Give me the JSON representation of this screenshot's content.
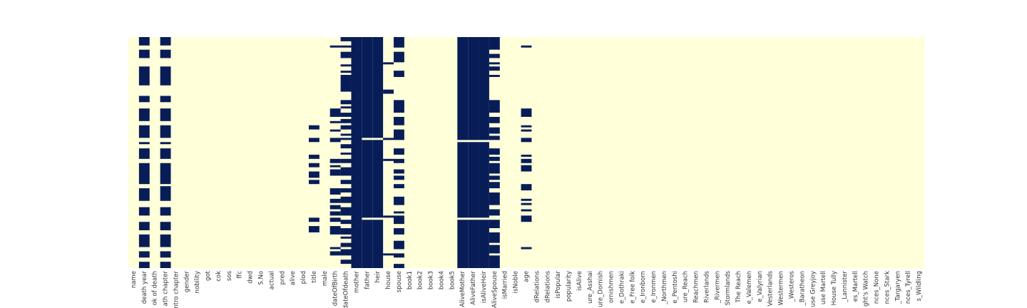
{
  "chart_data": {
    "type": "heatmap",
    "title": "",
    "xlabel": "",
    "ylabel": "",
    "grid": false,
    "colorbar": false,
    "colors": {
      "present": "#ffffd9",
      "missing": "#081d58"
    },
    "value_meaning": "1 = missing value, 0 = present",
    "x_tick_labels": [
      "name",
      "death year",
      "ok of death",
      "ath chapter",
      "ntro chapter",
      "gender",
      "nobility",
      "got",
      "cok",
      "sos",
      "ffc",
      "dwd",
      "S.No",
      "actual",
      "pred",
      "alive",
      "plod",
      "title",
      "male",
      "dateOfBirth",
      "dateOfdeath",
      "mother",
      "father",
      "heir",
      "house",
      "spouse",
      "book1",
      "book2",
      "book3",
      "book4",
      "book5",
      "AliveMother",
      "AliveFather",
      "isAliveHeir",
      "AliveSpouse",
      "isMarried",
      "isNoble",
      "age",
      "dRelations",
      "dRelations",
      "isPopular",
      "popularity",
      "isAlive",
      "ure_Asshai",
      "ure_Dornish",
      "ornishmen",
      "e_Dothraki",
      "e_Free folk",
      "e_Ironborn",
      "e_Ironmen",
      "_Northmen",
      "e_Pentoshi",
      "ure_Reach",
      "Reachmen",
      "Riverlands",
      "_Rivermen",
      "Stormlands",
      "The Reach",
      "e_Valemen",
      "e_Valyrian",
      "Vesterlands",
      "Westermen",
      "_Westeros",
      "_Baratheon",
      "use Greyjoy",
      "use Martell",
      "House Tully",
      "_Lannister",
      "es_Martell",
      "ght's Watch",
      "nces_None",
      "nces_Stark",
      "_Targaryen",
      "nces_Tyrell",
      "s_Wildling"
    ],
    "n_rows": 110,
    "missing_segments": {
      "1": [
        [
          0,
          4
        ],
        [
          6,
          10
        ],
        [
          14,
          23
        ],
        [
          28,
          31
        ],
        [
          34,
          40
        ],
        [
          42,
          48
        ],
        [
          50,
          51
        ],
        [
          53,
          58
        ],
        [
          60,
          70
        ],
        [
          72,
          78
        ],
        [
          81,
          85
        ],
        [
          88,
          92
        ],
        [
          94,
          100
        ],
        [
          102,
          105
        ],
        [
          107,
          110
        ]
      ],
      "3": [
        [
          0,
          4
        ],
        [
          6,
          10
        ],
        [
          14,
          23
        ],
        [
          28,
          31
        ],
        [
          34,
          40
        ],
        [
          42,
          48
        ],
        [
          50,
          51
        ],
        [
          53,
          58
        ],
        [
          60,
          70
        ],
        [
          71,
          78
        ],
        [
          81,
          85
        ],
        [
          88,
          92
        ],
        [
          94,
          100
        ],
        [
          102,
          105
        ],
        [
          107,
          110
        ]
      ],
      "17": [
        [
          42,
          44
        ],
        [
          48,
          50
        ],
        [
          56,
          58
        ],
        [
          60,
          62
        ],
        [
          64,
          67
        ],
        [
          68,
          70
        ],
        [
          86,
          88
        ],
        [
          90,
          93
        ]
      ],
      "19": [
        [
          4,
          5
        ],
        [
          34,
          38
        ],
        [
          40,
          41
        ],
        [
          44,
          45
        ],
        [
          48,
          50
        ],
        [
          58,
          60
        ],
        [
          61,
          62
        ],
        [
          63,
          66
        ],
        [
          72,
          75
        ],
        [
          77,
          79
        ],
        [
          80,
          82
        ],
        [
          83,
          85
        ],
        [
          86,
          88
        ],
        [
          90,
          94
        ],
        [
          100,
          101
        ],
        [
          102,
          104
        ]
      ],
      "20": [
        [
          0,
          2
        ],
        [
          4,
          5
        ],
        [
          7,
          10
        ],
        [
          13,
          14
        ],
        [
          16,
          17
        ],
        [
          18,
          26
        ],
        [
          30,
          32
        ],
        [
          33,
          34
        ],
        [
          36,
          38
        ],
        [
          39,
          41
        ],
        [
          42,
          44
        ],
        [
          46,
          47
        ],
        [
          48,
          49
        ],
        [
          51,
          53
        ],
        [
          55,
          56
        ],
        [
          58,
          60
        ],
        [
          62,
          66
        ],
        [
          68,
          70
        ],
        [
          72,
          74
        ],
        [
          76,
          79
        ],
        [
          81,
          85
        ],
        [
          87,
          89
        ],
        [
          91,
          94
        ],
        [
          95,
          96
        ],
        [
          98,
          100
        ],
        [
          101,
          104
        ],
        [
          106,
          108
        ]
      ],
      "21": [
        [
          0,
          110
        ]
      ],
      "22": [
        [
          0,
          48
        ],
        [
          49,
          86
        ],
        [
          87,
          110
        ]
      ],
      "23": [
        [
          0,
          48
        ],
        [
          49,
          86
        ],
        [
          87,
          110
        ]
      ],
      "24": [
        [
          12,
          13
        ],
        [
          25,
          27
        ],
        [
          48,
          49
        ],
        [
          58,
          59
        ],
        [
          85,
          86
        ],
        [
          103,
          104
        ]
      ],
      "25": [
        [
          0,
          5
        ],
        [
          7,
          12
        ],
        [
          16,
          19
        ],
        [
          30,
          36
        ],
        [
          38,
          42
        ],
        [
          44,
          49
        ],
        [
          53,
          56
        ],
        [
          58,
          60
        ],
        [
          63,
          65
        ],
        [
          66,
          68
        ],
        [
          70,
          72
        ],
        [
          76,
          80
        ],
        [
          83,
          84
        ],
        [
          85,
          89
        ],
        [
          91,
          94
        ],
        [
          97,
          101
        ],
        [
          103,
          105
        ],
        [
          108,
          110
        ]
      ],
      "31": [
        [
          0,
          49
        ],
        [
          50,
          86
        ],
        [
          87,
          110
        ]
      ],
      "32": [
        [
          0,
          49
        ],
        [
          50,
          86
        ],
        [
          87,
          110
        ]
      ],
      "33": [
        [
          0,
          49
        ],
        [
          50,
          86
        ],
        [
          87,
          110
        ]
      ],
      "34": [
        [
          0,
          6
        ],
        [
          8,
          10
        ],
        [
          12,
          13
        ],
        [
          14,
          16
        ],
        [
          18,
          19
        ],
        [
          30,
          36
        ],
        [
          38,
          41
        ],
        [
          43,
          46
        ],
        [
          47,
          49
        ],
        [
          53,
          56
        ],
        [
          57,
          59
        ],
        [
          60,
          65
        ],
        [
          66,
          68
        ],
        [
          69,
          72
        ],
        [
          74,
          80
        ],
        [
          82,
          85
        ],
        [
          87,
          91
        ],
        [
          93,
          98
        ],
        [
          99,
          103
        ],
        [
          104,
          110
        ]
      ],
      "37": [
        [
          4,
          5
        ],
        [
          34,
          38
        ],
        [
          42,
          43
        ],
        [
          44,
          45
        ],
        [
          48,
          50
        ],
        [
          56,
          57
        ],
        [
          58,
          60
        ],
        [
          61,
          64
        ],
        [
          70,
          73
        ],
        [
          77,
          78
        ],
        [
          79,
          80
        ],
        [
          82,
          83
        ],
        [
          85,
          88
        ],
        [
          100,
          101
        ]
      ]
    }
  }
}
